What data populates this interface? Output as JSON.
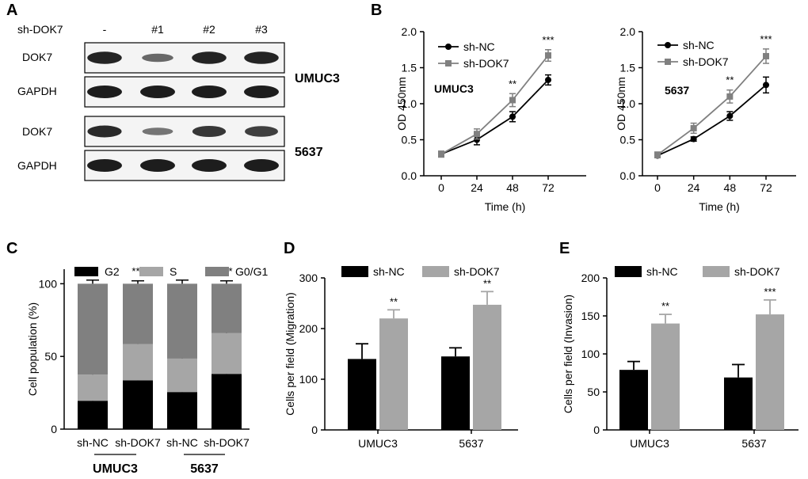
{
  "panel_a": {
    "letter": "A",
    "row_label": "sh-DOK7",
    "lanes": [
      "-",
      "#1",
      "#2",
      "#3"
    ],
    "blots": [
      {
        "label": "DOK7",
        "intensities": [
          0.95,
          0.45,
          0.95,
          0.95
        ]
      },
      {
        "label": "GAPDH",
        "intensities": [
          1.0,
          1.0,
          1.0,
          1.0
        ]
      },
      {
        "label": "DOK7",
        "intensities": [
          0.9,
          0.35,
          0.8,
          0.75
        ]
      },
      {
        "label": "GAPDH",
        "intensities": [
          1.0,
          1.0,
          1.0,
          1.0
        ]
      }
    ],
    "cell_lines": [
      "UMUC3",
      "5637"
    ]
  },
  "colors": {
    "black": "#000000",
    "light_gray": "#a6a6a6",
    "dark_gray": "#808080",
    "mid_gray": "#999999"
  },
  "chart_data": [
    {
      "id": "B1",
      "panel_letter": "B",
      "type": "line",
      "annotation": "UMUC3",
      "xlabel": "Time (h)",
      "ylabel": "OD 450nm",
      "x": [
        0,
        24,
        48,
        72
      ],
      "ylim": [
        0,
        2.0
      ],
      "yticks": [
        "0.0",
        "0.5",
        "1.0",
        "1.5",
        "2.0"
      ],
      "series": [
        {
          "name": "sh-NC",
          "values": [
            0.3,
            0.5,
            0.82,
            1.33
          ],
          "errors": [
            0.04,
            0.07,
            0.07,
            0.07
          ],
          "color": "#000000",
          "marker": "circle"
        },
        {
          "name": "sh-DOK7",
          "values": [
            0.3,
            0.58,
            1.05,
            1.67
          ],
          "errors": [
            0.04,
            0.07,
            0.09,
            0.08
          ],
          "color": "#808080",
          "marker": "square"
        }
      ],
      "significance": [
        {
          "x": 48,
          "label": "**"
        },
        {
          "x": 72,
          "label": "***"
        }
      ]
    },
    {
      "id": "B2",
      "type": "line",
      "annotation": "5637",
      "xlabel": "Time (h)",
      "ylabel": "OD 450nm",
      "x": [
        0,
        24,
        48,
        72
      ],
      "ylim": [
        0,
        2.0
      ],
      "yticks": [
        "0.0",
        "0.5",
        "1.0",
        "1.5",
        "2.0"
      ],
      "series": [
        {
          "name": "sh-NC",
          "values": [
            0.28,
            0.51,
            0.83,
            1.26
          ],
          "errors": [
            0.03,
            0.03,
            0.06,
            0.11
          ],
          "color": "#000000",
          "marker": "circle"
        },
        {
          "name": "sh-DOK7",
          "values": [
            0.29,
            0.66,
            1.1,
            1.66
          ],
          "errors": [
            0.04,
            0.07,
            0.09,
            0.1
          ],
          "color": "#808080",
          "marker": "square"
        }
      ],
      "significance": [
        {
          "x": 48,
          "label": "**"
        },
        {
          "x": 72,
          "label": "***"
        }
      ]
    },
    {
      "id": "C",
      "panel_letter": "C",
      "type": "bar",
      "stacked": true,
      "ylabel": "Cell population (%)",
      "categories": [
        "sh-NC",
        "sh-DOK7",
        "sh-NC",
        "sh-DOK7"
      ],
      "groups": [
        "UMUC3",
        "5637"
      ],
      "ylim": [
        0,
        110
      ],
      "yticks": [
        "0",
        "50",
        "100"
      ],
      "series": [
        {
          "name": "G2",
          "values": [
            19.5,
            33.5,
            25.5,
            38
          ],
          "errors": [
            1.5,
            4,
            1.5,
            3
          ],
          "color": "#000000"
        },
        {
          "name": "S",
          "values": [
            18,
            25,
            23,
            28
          ],
          "errors": [
            1.5,
            1.5,
            1,
            1
          ],
          "color": "#a6a6a6"
        },
        {
          "name": "G0/G1",
          "values": [
            62.5,
            41.5,
            51.5,
            34
          ],
          "errors": [
            2.5,
            2,
            2.5,
            2
          ],
          "color": "#808080"
        }
      ],
      "significance": [
        {
          "index": 1,
          "label": "***"
        },
        {
          "index": 3,
          "label": "***"
        }
      ]
    },
    {
      "id": "D",
      "panel_letter": "D",
      "type": "bar",
      "ylabel": "Cells per field (Migration)",
      "categories": [
        "UMUC3",
        "5637"
      ],
      "ylim": [
        0,
        300
      ],
      "yticks": [
        "0",
        "100",
        "200",
        "300"
      ],
      "series": [
        {
          "name": "sh-NC",
          "values": [
            140,
            145
          ],
          "errors": [
            30,
            17
          ],
          "color": "#000000"
        },
        {
          "name": "sh-DOK7",
          "values": [
            220,
            247
          ],
          "errors": [
            17,
            26
          ],
          "color": "#a6a6a6"
        }
      ],
      "significance": [
        {
          "index": 0,
          "label": "**"
        },
        {
          "index": 1,
          "label": "**"
        }
      ]
    },
    {
      "id": "E",
      "panel_letter": "E",
      "type": "bar",
      "ylabel": "Cells per field (Invasion)",
      "categories": [
        "UMUC3",
        "5637"
      ],
      "ylim": [
        0,
        200
      ],
      "yticks": [
        "0",
        "50",
        "100",
        "150",
        "200"
      ],
      "series": [
        {
          "name": "sh-NC",
          "values": [
            79,
            69
          ],
          "errors": [
            11,
            17
          ],
          "color": "#000000"
        },
        {
          "name": "sh-DOK7",
          "values": [
            140,
            152
          ],
          "errors": [
            12,
            19
          ],
          "color": "#a6a6a6"
        }
      ],
      "significance": [
        {
          "index": 0,
          "label": "**"
        },
        {
          "index": 1,
          "label": "***"
        }
      ]
    }
  ]
}
